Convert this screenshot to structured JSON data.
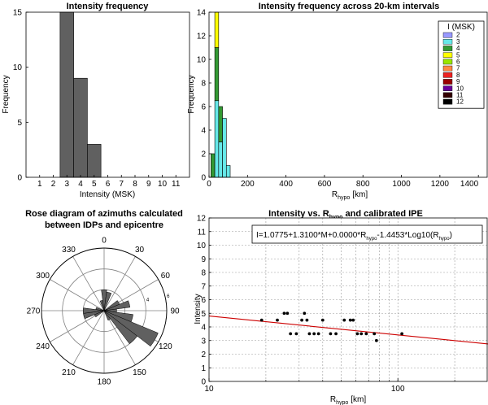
{
  "chart_data": [
    {
      "type": "bar",
      "title": "Intensity frequency",
      "xlabel": "Intensity (MSK)",
      "ylabel": "Frequency",
      "categories": [
        1,
        2,
        3,
        4,
        5,
        6,
        7,
        8,
        9,
        10,
        11
      ],
      "values": [
        0,
        0,
        15,
        9,
        3,
        0,
        0,
        0,
        0,
        0,
        0
      ],
      "xlim": [
        0,
        12
      ],
      "ylim": [
        0,
        15
      ],
      "yticks": [
        0,
        5,
        10,
        15
      ],
      "bar_color": "#606060"
    },
    {
      "type": "bar",
      "stacked": true,
      "title": "Intensity frequency across 20-km intervals",
      "xlabel": "R",
      "xlabel_sub": "hypo",
      "xlabel_unit": "[km]",
      "ylabel": "Frequency",
      "xlim": [
        0,
        1450
      ],
      "ylim": [
        0,
        14
      ],
      "xticks": [
        0,
        200,
        400,
        600,
        800,
        1000,
        1200,
        1400
      ],
      "yticks": [
        0,
        2,
        4,
        6,
        8,
        10,
        12,
        14
      ],
      "bin_width": 20,
      "legend_title": "I (MSK)",
      "legend_position": "top-right",
      "legend": [
        {
          "name": "2",
          "color": "#9999ff"
        },
        {
          "name": "3",
          "color": "#66e8e8"
        },
        {
          "name": "4",
          "color": "#339933"
        },
        {
          "name": "5",
          "color": "#ffff00"
        },
        {
          "name": "6",
          "color": "#99e600"
        },
        {
          "name": "7",
          "color": "#ff8844"
        },
        {
          "name": "8",
          "color": "#ee2222"
        },
        {
          "name": "9",
          "color": "#990000"
        },
        {
          "name": "10",
          "color": "#660099"
        },
        {
          "name": "11",
          "color": "#330000"
        },
        {
          "name": "12",
          "color": "#000000"
        }
      ],
      "bins": [
        {
          "x0": 20,
          "segments": [
            {
              "intensity": "3",
              "count": 0
            },
            {
              "intensity": "4",
              "count": 2
            }
          ]
        },
        {
          "x0": 40,
          "segments": [
            {
              "intensity": "3",
              "count": 6.5
            },
            {
              "intensity": "4",
              "count": 4.5
            },
            {
              "intensity": "5",
              "count": 3
            }
          ]
        },
        {
          "x0": 60,
          "segments": [
            {
              "intensity": "3",
              "count": 3
            },
            {
              "intensity": "4",
              "count": 3
            }
          ]
        },
        {
          "x0": 80,
          "segments": [
            {
              "intensity": "3",
              "count": 5
            }
          ]
        },
        {
          "x0": 100,
          "segments": [
            {
              "intensity": "3",
              "count": 1
            }
          ]
        }
      ]
    },
    {
      "type": "rose",
      "title": "Rose diagram of azimuths calculated",
      "title_line2": "between  IDPs and epicentre",
      "angle_labels": [
        "0",
        "30",
        "60",
        "90",
        "120",
        "150",
        "180",
        "210",
        "240",
        "270",
        "300",
        "330"
      ],
      "radial_max": 6,
      "radial_labels": [
        {
          "value": 4,
          "label": "4"
        },
        {
          "value": 6,
          "label": "6"
        }
      ],
      "sector_width_deg": 15,
      "sectors": [
        {
          "azimuth": -15,
          "value": 1
        },
        {
          "azimuth": 0,
          "value": 2
        },
        {
          "azimuth": 15,
          "value": 1.8
        },
        {
          "azimuth": 60,
          "value": 1.6
        },
        {
          "azimuth": 75,
          "value": 2.5
        },
        {
          "azimuth": 90,
          "value": 1.2
        },
        {
          "azimuth": 105,
          "value": 2.8
        },
        {
          "azimuth": 120,
          "value": 5.6
        },
        {
          "azimuth": 135,
          "value": 4
        },
        {
          "azimuth": 150,
          "value": 1
        },
        {
          "azimuth": 240,
          "value": 1
        },
        {
          "azimuth": 255,
          "value": 2
        },
        {
          "azimuth": 270,
          "value": 2
        },
        {
          "azimuth": 285,
          "value": 0.8
        }
      ],
      "fill_color": "#606060"
    },
    {
      "type": "scatter",
      "xscale": "log",
      "title": "Intensity vs. R",
      "title_sub": "hypo",
      "title_suffix": " and calibrated IPE",
      "xlabel": "R",
      "xlabel_sub": "hypo",
      "xlabel_unit": "[km]",
      "ylabel": "Intensity",
      "xlim": [
        10,
        300
      ],
      "ylim": [
        0,
        12
      ],
      "xticks": [
        10,
        100
      ],
      "yticks": [
        0,
        1,
        2,
        3,
        4,
        5,
        6,
        7,
        8,
        9,
        10,
        11,
        12
      ],
      "equation_parts": [
        "I=1.0775+1.3100*M+0.0000*R",
        "hypo",
        "-1.4453*Log10(R",
        "hypo",
        ")"
      ],
      "points": [
        {
          "x": 19,
          "y": 4.5
        },
        {
          "x": 23,
          "y": 4.5
        },
        {
          "x": 25,
          "y": 5
        },
        {
          "x": 26,
          "y": 5
        },
        {
          "x": 27,
          "y": 3.5
        },
        {
          "x": 29,
          "y": 3.5
        },
        {
          "x": 31,
          "y": 4.5
        },
        {
          "x": 32,
          "y": 5
        },
        {
          "x": 33,
          "y": 4.5
        },
        {
          "x": 34,
          "y": 3.5
        },
        {
          "x": 36,
          "y": 3.5
        },
        {
          "x": 38,
          "y": 3.5
        },
        {
          "x": 40,
          "y": 4.5
        },
        {
          "x": 44,
          "y": 3.5
        },
        {
          "x": 47,
          "y": 3.5
        },
        {
          "x": 52,
          "y": 4.5
        },
        {
          "x": 56,
          "y": 4.5
        },
        {
          "x": 58,
          "y": 4.5
        },
        {
          "x": 61,
          "y": 3.5
        },
        {
          "x": 64,
          "y": 3.5
        },
        {
          "x": 68,
          "y": 3.5
        },
        {
          "x": 75,
          "y": 3.5
        },
        {
          "x": 77,
          "y": 3
        },
        {
          "x": 105,
          "y": 3.5
        }
      ],
      "fit_line": {
        "points": [
          {
            "x": 10,
            "y": 4.8
          },
          {
            "x": 300,
            "y": 2.75
          }
        ],
        "color": "#cc0000"
      }
    }
  ]
}
